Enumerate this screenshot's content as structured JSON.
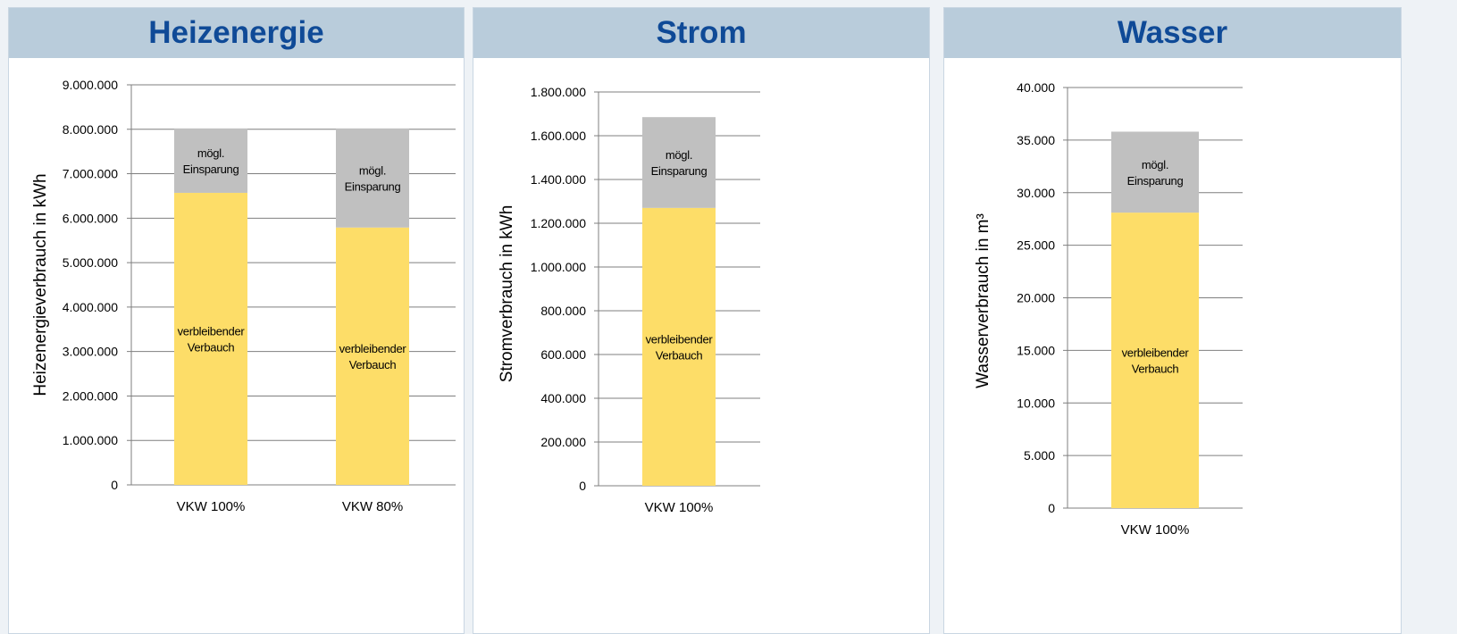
{
  "panels": [
    {
      "title": "Heizenergie",
      "chart_data": {
        "type": "bar",
        "stacked": true,
        "ylabel": "Heizenergieverbrauch in kWh",
        "ylim": [
          0,
          9000000
        ],
        "yticks": [
          0,
          1000000,
          2000000,
          3000000,
          4000000,
          5000000,
          6000000,
          7000000,
          8000000,
          9000000
        ],
        "ytick_labels": [
          "0",
          "1.000.000",
          "2.000.000",
          "3.000.000",
          "4.000.000",
          "5.000.000",
          "6.000.000",
          "7.000.000",
          "8.000.000",
          "9.000.000"
        ],
        "grid": true,
        "categories": [
          "VKW 100%",
          "VKW 80%"
        ],
        "series": [
          {
            "label": "verbleibender\nVerbauch",
            "values": [
              6570000,
              5790000
            ],
            "color": "#fddd68"
          },
          {
            "label": "mögl.\nEinsparung",
            "values": [
              1450000,
              2230000
            ],
            "color": "#c0c0c0"
          }
        ]
      }
    },
    {
      "title": "Strom",
      "chart_data": {
        "type": "bar",
        "stacked": true,
        "ylabel": "Stromverbrauch in kWh",
        "ylim": [
          0,
          1800000
        ],
        "yticks": [
          0,
          200000,
          400000,
          600000,
          800000,
          1000000,
          1200000,
          1400000,
          1600000,
          1800000
        ],
        "ytick_labels": [
          "0",
          "200.000",
          "400.000",
          "600.000",
          "800.000",
          "1.000.000",
          "1.200.000",
          "1.400.000",
          "1.600.000",
          "1.800.000"
        ],
        "grid": true,
        "categories": [
          "VKW 100%"
        ],
        "series": [
          {
            "label": "verbleibender\nVerbauch",
            "values": [
              1270000
            ],
            "color": "#fddd68"
          },
          {
            "label": "mögl.\nEinsparung",
            "values": [
              415000
            ],
            "color": "#c0c0c0"
          }
        ]
      }
    },
    {
      "title": "Wasser",
      "chart_data": {
        "type": "bar",
        "stacked": true,
        "ylabel": "Wasserverbrauch in m³",
        "ylim": [
          0,
          40000
        ],
        "yticks": [
          0,
          5000,
          10000,
          15000,
          20000,
          25000,
          30000,
          35000,
          40000
        ],
        "ytick_labels": [
          "0",
          "5.000",
          "10.000",
          "15.000",
          "20.000",
          "25.000",
          "30.000",
          "35.000",
          "40.000"
        ],
        "grid": true,
        "categories": [
          "VKW 100%"
        ],
        "series": [
          {
            "label": "verbleibender\nVerbauch",
            "values": [
              28100
            ],
            "color": "#fddd68"
          },
          {
            "label": "mögl.\nEinsparung",
            "values": [
              7700
            ],
            "color": "#c0c0c0"
          }
        ]
      }
    }
  ]
}
